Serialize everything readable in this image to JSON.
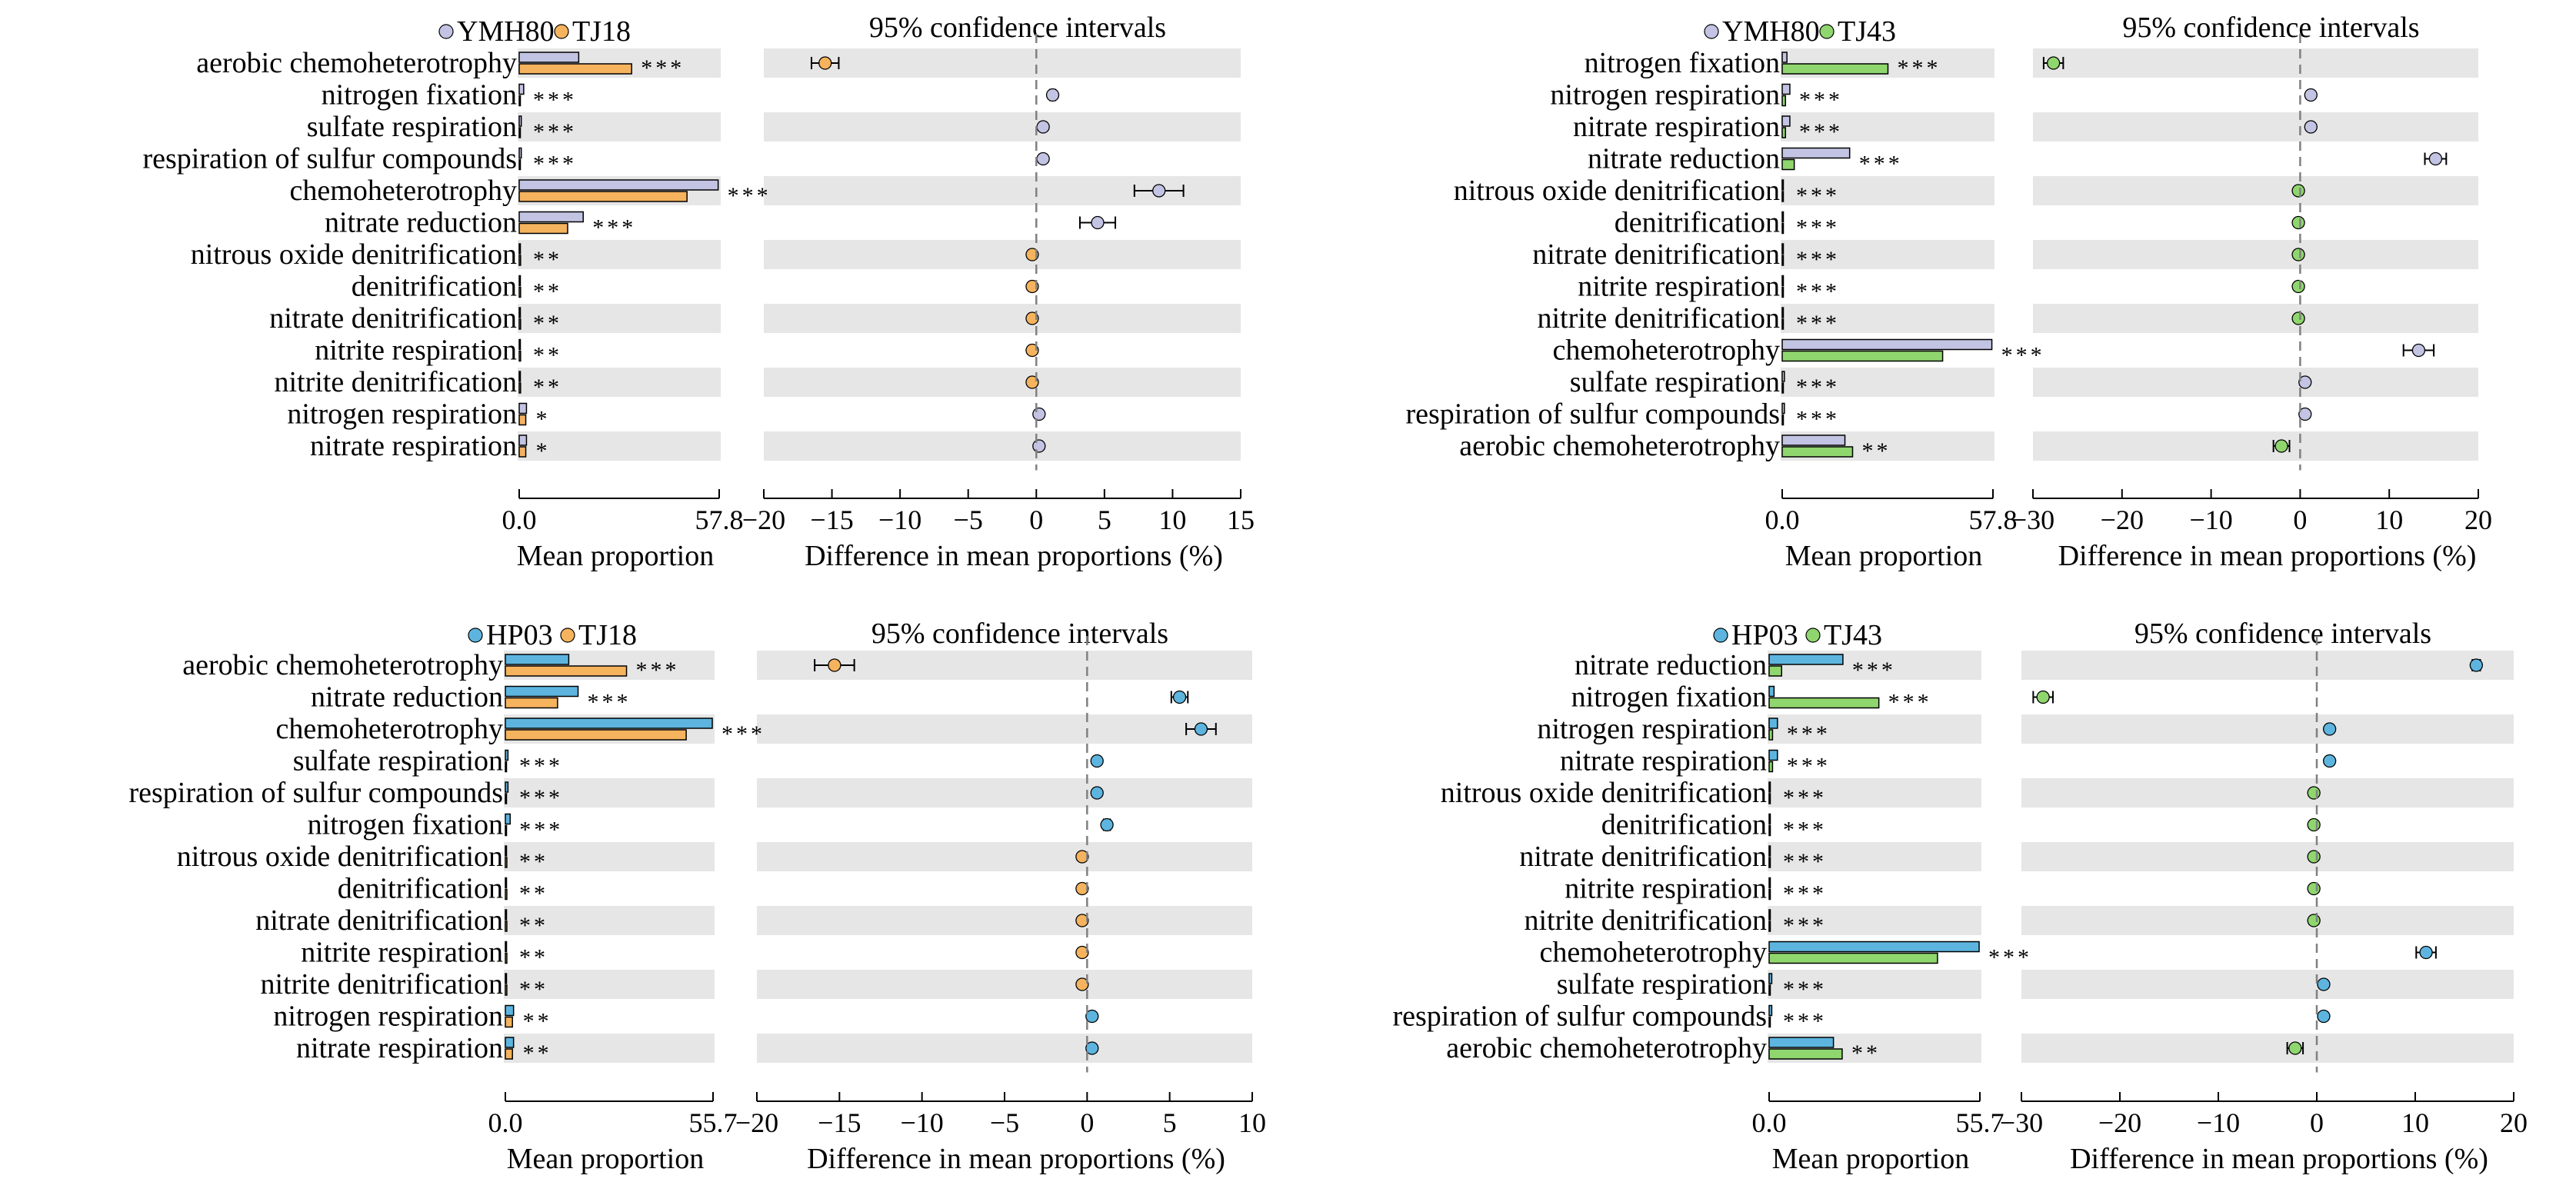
{
  "figure": {
    "colors": {
      "YMH80": "#c3c3e3",
      "TJ18": "#f5b35e",
      "TJ43": "#8fd66e",
      "HP03": "#5db5df",
      "band": "#e6e6e6",
      "zero_line": "#808080"
    },
    "common": {
      "ci_title": "95% confidence intervals",
      "x_label_left": "Mean proportion",
      "x_label_right": "Difference in mean proportions (%)"
    }
  },
  "chart_data": [
    {
      "type": "extended-error-bar",
      "groups": [
        "YMH80",
        "TJ18"
      ],
      "bar_max": 57.8,
      "bar_axis_ticks": [
        "0.0",
        "57.8"
      ],
      "ci_xlim": [
        -20,
        15
      ],
      "ci_ticks": [
        -20,
        -15,
        -10,
        -5,
        0,
        5,
        10,
        15
      ],
      "ci_title": "95% confidence intervals",
      "xlabel_bar": "Mean proportion",
      "xlabel_ci": "Difference in mean proportions (%)",
      "rows": [
        {
          "label": "aerobic chemoheterotrophy",
          "a": 17.2,
          "b": 32.5,
          "sig": "***",
          "diff": -15.5,
          "ci": [
            -16.5,
            -14.5
          ]
        },
        {
          "label": "nitrogen fixation",
          "a": 1.3,
          "b": 0.1,
          "sig": "***",
          "diff": 1.2,
          "ci": [
            1.0,
            1.4
          ]
        },
        {
          "label": "sulfate respiration",
          "a": 0.6,
          "b": 0.1,
          "sig": "***",
          "diff": 0.5,
          "ci": [
            0.4,
            0.6
          ]
        },
        {
          "label": "respiration of sulfur compounds",
          "a": 0.6,
          "b": 0.1,
          "sig": "***",
          "diff": 0.5,
          "ci": [
            0.4,
            0.6
          ]
        },
        {
          "label": "chemoheterotrophy",
          "a": 57.5,
          "b": 48.5,
          "sig": "***",
          "diff": 9.0,
          "ci": [
            7.2,
            10.8
          ]
        },
        {
          "label": "nitrate reduction",
          "a": 18.5,
          "b": 14.0,
          "sig": "***",
          "diff": 4.5,
          "ci": [
            3.2,
            5.8
          ]
        },
        {
          "label": "nitrous oxide denitrification",
          "a": 0.05,
          "b": 0.4,
          "sig": "**",
          "diff": -0.3,
          "ci": [
            -0.4,
            -0.2
          ]
        },
        {
          "label": "denitrification",
          "a": 0.05,
          "b": 0.4,
          "sig": "**",
          "diff": -0.3,
          "ci": [
            -0.4,
            -0.2
          ]
        },
        {
          "label": "nitrate denitrification",
          "a": 0.05,
          "b": 0.4,
          "sig": "**",
          "diff": -0.3,
          "ci": [
            -0.4,
            -0.2
          ]
        },
        {
          "label": "nitrite respiration",
          "a": 0.05,
          "b": 0.4,
          "sig": "**",
          "diff": -0.3,
          "ci": [
            -0.4,
            -0.2
          ]
        },
        {
          "label": "nitrite denitrification",
          "a": 0.05,
          "b": 0.4,
          "sig": "**",
          "diff": -0.3,
          "ci": [
            -0.4,
            -0.2
          ]
        },
        {
          "label": "nitrogen respiration",
          "a": 2.1,
          "b": 1.9,
          "sig": "*",
          "diff": 0.2,
          "ci": [
            0.1,
            0.3
          ]
        },
        {
          "label": "nitrate respiration",
          "a": 2.1,
          "b": 1.9,
          "sig": "*",
          "diff": 0.2,
          "ci": [
            0.1,
            0.3
          ]
        }
      ]
    },
    {
      "type": "extended-error-bar",
      "groups": [
        "YMH80",
        "TJ43"
      ],
      "bar_max": 57.8,
      "bar_axis_ticks": [
        "0.0",
        "57.8"
      ],
      "ci_xlim": [
        -30,
        20
      ],
      "ci_ticks": [
        -30,
        -20,
        -10,
        0,
        10,
        20
      ],
      "ci_title": "95% confidence intervals",
      "xlabel_bar": "Mean proportion",
      "xlabel_ci": "Difference in mean proportions (%)",
      "rows": [
        {
          "label": "nitrogen fixation",
          "a": 1.3,
          "b": 29.0,
          "sig": "***",
          "diff": -27.7,
          "ci": [
            -28.8,
            -26.6
          ]
        },
        {
          "label": "nitrogen respiration",
          "a": 2.1,
          "b": 0.9,
          "sig": "***",
          "diff": 1.2,
          "ci": [
            1.0,
            1.4
          ]
        },
        {
          "label": "nitrate respiration",
          "a": 2.1,
          "b": 0.9,
          "sig": "***",
          "diff": 1.2,
          "ci": [
            1.0,
            1.4
          ]
        },
        {
          "label": "nitrate reduction",
          "a": 18.5,
          "b": 3.3,
          "sig": "***",
          "diff": 15.2,
          "ci": [
            14.0,
            16.4
          ]
        },
        {
          "label": "nitrous oxide denitrification",
          "a": 0.05,
          "b": 0.3,
          "sig": "***",
          "diff": -0.2,
          "ci": [
            -0.3,
            -0.1
          ]
        },
        {
          "label": "denitrification",
          "a": 0.05,
          "b": 0.3,
          "sig": "***",
          "diff": -0.2,
          "ci": [
            -0.3,
            -0.1
          ]
        },
        {
          "label": "nitrate denitrification",
          "a": 0.05,
          "b": 0.3,
          "sig": "***",
          "diff": -0.2,
          "ci": [
            -0.3,
            -0.1
          ]
        },
        {
          "label": "nitrite respiration",
          "a": 0.05,
          "b": 0.3,
          "sig": "***",
          "diff": -0.2,
          "ci": [
            -0.3,
            -0.1
          ]
        },
        {
          "label": "nitrite denitrification",
          "a": 0.05,
          "b": 0.3,
          "sig": "***",
          "diff": -0.2,
          "ci": [
            -0.3,
            -0.1
          ]
        },
        {
          "label": "chemoheterotrophy",
          "a": 57.5,
          "b": 44.0,
          "sig": "***",
          "diff": 13.3,
          "ci": [
            11.6,
            15.0
          ]
        },
        {
          "label": "sulfate respiration",
          "a": 0.6,
          "b": 0.05,
          "sig": "***",
          "diff": 0.55,
          "ci": [
            0.45,
            0.65
          ]
        },
        {
          "label": "respiration of sulfur compounds",
          "a": 0.6,
          "b": 0.05,
          "sig": "***",
          "diff": 0.55,
          "ci": [
            0.45,
            0.65
          ]
        },
        {
          "label": "aerobic chemoheterotrophy",
          "a": 17.2,
          "b": 19.3,
          "sig": "**",
          "diff": -2.1,
          "ci": [
            -3.0,
            -1.2
          ]
        }
      ]
    },
    {
      "type": "extended-error-bar",
      "groups": [
        "HP03",
        "TJ18"
      ],
      "bar_max": 55.7,
      "bar_axis_ticks": [
        "0.0",
        "55.7"
      ],
      "ci_xlim": [
        -20,
        10
      ],
      "ci_ticks": [
        -20,
        -15,
        -10,
        -5,
        0,
        5,
        10
      ],
      "ci_title": "95% confidence intervals",
      "xlabel_bar": "Mean proportion",
      "xlabel_ci": "Difference in mean proportions (%)",
      "rows": [
        {
          "label": "aerobic chemoheterotrophy",
          "a": 17.0,
          "b": 32.5,
          "sig": "***",
          "diff": -15.3,
          "ci": [
            -16.5,
            -14.1
          ]
        },
        {
          "label": "nitrate reduction",
          "a": 19.5,
          "b": 14.0,
          "sig": "***",
          "diff": 5.6,
          "ci": [
            5.1,
            6.1
          ]
        },
        {
          "label": "chemoheterotrophy",
          "a": 55.5,
          "b": 48.5,
          "sig": "***",
          "diff": 6.9,
          "ci": [
            6.0,
            7.8
          ]
        },
        {
          "label": "sulfate respiration",
          "a": 0.7,
          "b": 0.1,
          "sig": "***",
          "diff": 0.6,
          "ci": [
            0.5,
            0.7
          ]
        },
        {
          "label": "respiration of sulfur compounds",
          "a": 0.7,
          "b": 0.1,
          "sig": "***",
          "diff": 0.6,
          "ci": [
            0.5,
            0.7
          ]
        },
        {
          "label": "nitrogen fixation",
          "a": 1.3,
          "b": 0.1,
          "sig": "***",
          "diff": 1.2,
          "ci": [
            1.0,
            1.4
          ]
        },
        {
          "label": "nitrous oxide denitrification",
          "a": 0.05,
          "b": 0.4,
          "sig": "**",
          "diff": -0.3,
          "ci": [
            -0.4,
            -0.2
          ]
        },
        {
          "label": "denitrification",
          "a": 0.05,
          "b": 0.4,
          "sig": "**",
          "diff": -0.3,
          "ci": [
            -0.4,
            -0.2
          ]
        },
        {
          "label": "nitrate denitrification",
          "a": 0.05,
          "b": 0.4,
          "sig": "**",
          "diff": -0.3,
          "ci": [
            -0.4,
            -0.2
          ]
        },
        {
          "label": "nitrite respiration",
          "a": 0.05,
          "b": 0.4,
          "sig": "**",
          "diff": -0.3,
          "ci": [
            -0.4,
            -0.2
          ]
        },
        {
          "label": "nitrite denitrification",
          "a": 0.05,
          "b": 0.4,
          "sig": "**",
          "diff": -0.3,
          "ci": [
            -0.4,
            -0.2
          ]
        },
        {
          "label": "nitrogen respiration",
          "a": 2.2,
          "b": 1.9,
          "sig": "**",
          "diff": 0.3,
          "ci": [
            0.2,
            0.4
          ]
        },
        {
          "label": "nitrate respiration",
          "a": 2.2,
          "b": 1.9,
          "sig": "**",
          "diff": 0.3,
          "ci": [
            0.2,
            0.4
          ]
        }
      ]
    },
    {
      "type": "extended-error-bar",
      "groups": [
        "HP03",
        "TJ43"
      ],
      "bar_max": 55.7,
      "bar_axis_ticks": [
        "0.0",
        "55.7"
      ],
      "ci_xlim": [
        -30,
        20
      ],
      "ci_ticks": [
        -30,
        -20,
        -10,
        0,
        10,
        20
      ],
      "ci_title": "95% confidence intervals",
      "xlabel_bar": "Mean proportion",
      "xlabel_ci": "Difference in mean proportions (%)",
      "rows": [
        {
          "label": "nitrate reduction",
          "a": 19.5,
          "b": 3.3,
          "sig": "***",
          "diff": 16.2,
          "ci": [
            15.8,
            16.6
          ]
        },
        {
          "label": "nitrogen fixation",
          "a": 1.3,
          "b": 29.0,
          "sig": "***",
          "diff": -27.8,
          "ci": [
            -28.8,
            -26.8
          ]
        },
        {
          "label": "nitrogen respiration",
          "a": 2.2,
          "b": 0.9,
          "sig": "***",
          "diff": 1.3,
          "ci": [
            1.1,
            1.5
          ]
        },
        {
          "label": "nitrate respiration",
          "a": 2.2,
          "b": 0.9,
          "sig": "***",
          "diff": 1.3,
          "ci": [
            1.1,
            1.5
          ]
        },
        {
          "label": "nitrous oxide denitrification",
          "a": 0.05,
          "b": 0.3,
          "sig": "***",
          "diff": -0.3,
          "ci": [
            -0.4,
            -0.2
          ]
        },
        {
          "label": "denitrification",
          "a": 0.05,
          "b": 0.3,
          "sig": "***",
          "diff": -0.3,
          "ci": [
            -0.4,
            -0.2
          ]
        },
        {
          "label": "nitrate denitrification",
          "a": 0.05,
          "b": 0.3,
          "sig": "***",
          "diff": -0.3,
          "ci": [
            -0.4,
            -0.2
          ]
        },
        {
          "label": "nitrite respiration",
          "a": 0.05,
          "b": 0.3,
          "sig": "***",
          "diff": -0.3,
          "ci": [
            -0.4,
            -0.2
          ]
        },
        {
          "label": "nitrite denitrification",
          "a": 0.05,
          "b": 0.3,
          "sig": "***",
          "diff": -0.3,
          "ci": [
            -0.4,
            -0.2
          ]
        },
        {
          "label": "chemoheterotrophy",
          "a": 55.5,
          "b": 44.5,
          "sig": "***",
          "diff": 11.1,
          "ci": [
            10.1,
            12.1
          ]
        },
        {
          "label": "sulfate respiration",
          "a": 0.7,
          "b": 0.05,
          "sig": "***",
          "diff": 0.7,
          "ci": [
            0.6,
            0.8
          ]
        },
        {
          "label": "respiration of sulfur compounds",
          "a": 0.7,
          "b": 0.05,
          "sig": "***",
          "diff": 0.7,
          "ci": [
            0.6,
            0.8
          ]
        },
        {
          "label": "aerobic chemoheterotrophy",
          "a": 17.0,
          "b": 19.3,
          "sig": "**",
          "diff": -2.2,
          "ci": [
            -3.0,
            -1.4
          ]
        }
      ]
    }
  ]
}
